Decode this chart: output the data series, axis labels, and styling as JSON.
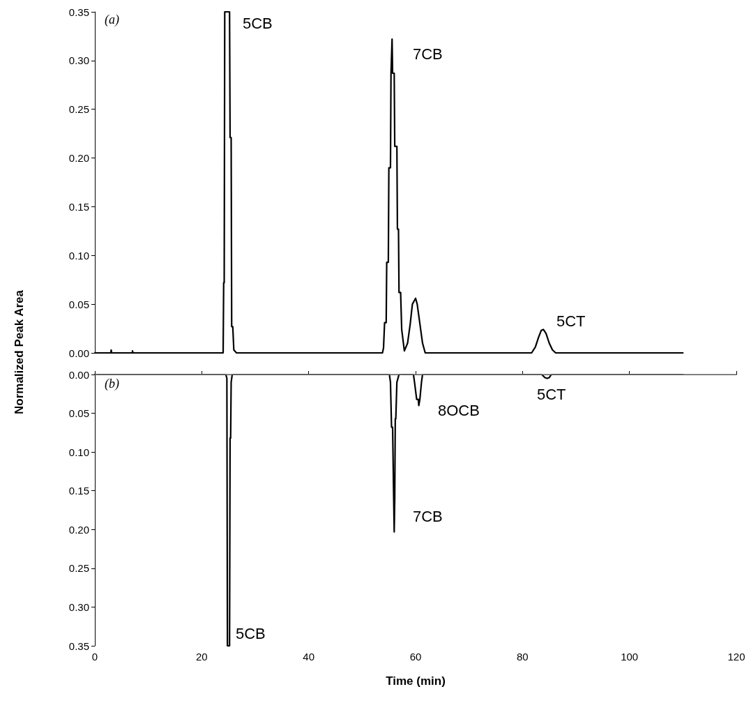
{
  "chart_data": [
    {
      "type": "line",
      "ylabel": "Normalized Peak Area",
      "annotations": [
        "(a)",
        "5CB",
        "7CB",
        "5CT"
      ],
      "series": [
        {
          "color": "#000000",
          "x": [
            0,
            3,
            3.05,
            3.15,
            7,
            7.05,
            7.15,
            24,
            24.1,
            24.2,
            24.3,
            25.2,
            25.3,
            25.5,
            25.6,
            25.8,
            26,
            26.5,
            53.8,
            54.0,
            54.2,
            54.5,
            54.6,
            54.9,
            55.0,
            55.3,
            55.4,
            55.6,
            55.7,
            56.0,
            56.1,
            56.5,
            56.6,
            56.8,
            56.9,
            57.2,
            57.4,
            57.9,
            58.5,
            59.0,
            59.4,
            60.0,
            60.3,
            60.8,
            61.3,
            61.8,
            81.7,
            82.4,
            83.0,
            83.5,
            83.9,
            84.4,
            85.0,
            85.6,
            86.2,
            110
          ],
          "values": [
            0,
            0,
            0.003,
            0,
            0,
            0.002,
            0,
            0,
            0.072,
            0.072,
            0.35,
            0.35,
            0.221,
            0.221,
            0.027,
            0.027,
            0.003,
            0,
            0,
            0.005,
            0.031,
            0.031,
            0.093,
            0.093,
            0.19,
            0.19,
            0.287,
            0.322,
            0.287,
            0.287,
            0.212,
            0.212,
            0.127,
            0.127,
            0.062,
            0.062,
            0.024,
            0.002,
            0.01,
            0.03,
            0.05,
            0.056,
            0.05,
            0.03,
            0.01,
            0,
            0,
            0.006,
            0.016,
            0.023,
            0.024,
            0.02,
            0.01,
            0.003,
            0,
            0
          ]
        }
      ],
      "xlim": [
        0,
        120
      ],
      "ylim": [
        0,
        0.35
      ],
      "yticks": [
        {
          "value": 0,
          "label": "0.00"
        },
        {
          "value": 0.05,
          "label": "0.05"
        },
        {
          "value": 0.1,
          "label": "0.10"
        },
        {
          "value": 0.15,
          "label": "0.15"
        },
        {
          "value": 0.2,
          "label": "0.20"
        },
        {
          "value": 0.25,
          "label": "0.25"
        },
        {
          "value": 0.3,
          "label": "0.30"
        },
        {
          "value": 0.35,
          "label": "0.35"
        }
      ],
      "tick_labels": "y",
      "grid": false,
      "marker": "none",
      "line_style": "solid"
    },
    {
      "type": "line",
      "xlabel": "Time (min)",
      "annotations": [
        "(b)",
        "8OCB",
        "5CT",
        "7CB",
        "5CB"
      ],
      "series": [
        {
          "color": "#000000",
          "x": [
            0,
            24.5,
            24.7,
            24.8,
            25.2,
            25.3,
            25.4,
            25.5,
            25.7,
            26.2,
            55.1,
            55.3,
            55.5,
            55.7,
            55.9,
            56.0,
            56.1,
            56.2,
            56.3,
            56.5,
            56.9,
            59.6,
            59.8,
            60.2,
            60.5,
            60.6,
            60.8,
            61.1,
            61.3,
            83.6,
            84.2,
            84.6,
            85.0,
            85.4,
            110
          ],
          "values": [
            0,
            0,
            0.005,
            0.35,
            0.35,
            0.082,
            0.082,
            0.01,
            0,
            0,
            0,
            0.01,
            0.068,
            0.068,
            0.16,
            0.203,
            0.16,
            0.057,
            0.057,
            0.01,
            0,
            0,
            0.01,
            0.032,
            0.032,
            0.04,
            0.032,
            0.01,
            0,
            0,
            0.004,
            0.005,
            0.004,
            0,
            0
          ]
        }
      ],
      "xlim": [
        0,
        120
      ],
      "xticks": [
        0,
        20,
        40,
        60,
        80,
        100,
        120
      ],
      "ylim": [
        0.35,
        0
      ],
      "yticks": [
        {
          "value": 0,
          "label": "0.00"
        },
        {
          "value": 0.05,
          "label": "0.05"
        },
        {
          "value": 0.1,
          "label": "0.10"
        },
        {
          "value": 0.15,
          "label": "0.15"
        },
        {
          "value": 0.2,
          "label": "0.20"
        },
        {
          "value": 0.25,
          "label": "0.25"
        },
        {
          "value": 0.3,
          "label": "0.30"
        },
        {
          "value": 0.35,
          "label": "0.35"
        }
      ],
      "ref_lines": [
        {
          "axis": "y",
          "value": 0,
          "color": "#808080"
        }
      ],
      "grid": false,
      "marker": "none",
      "line_style": "solid"
    }
  ]
}
